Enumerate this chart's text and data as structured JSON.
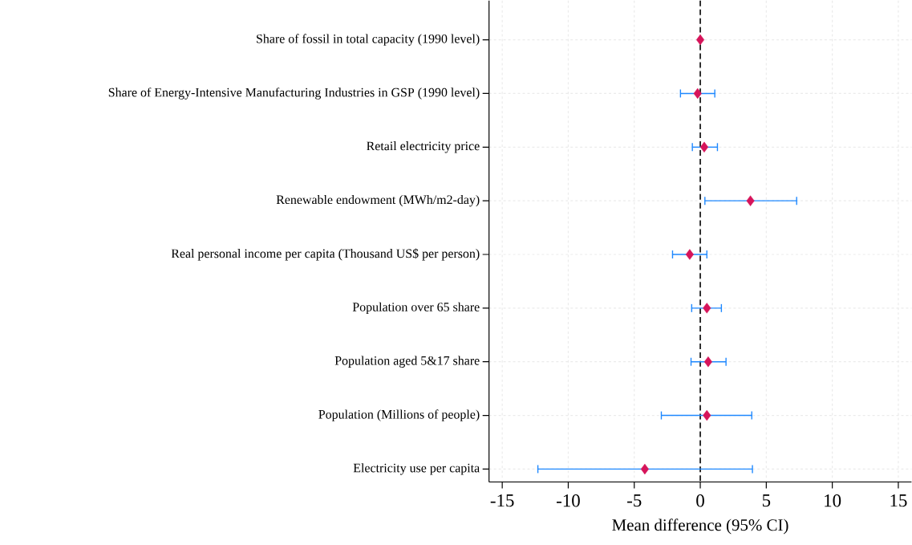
{
  "chart_data": {
    "type": "scatter",
    "orientation": "horizontal",
    "xlabel": "Mean difference (95% CI)",
    "categories": [
      "Share of fossil in total capacity (1990 level)",
      "Share of Energy-Intensive Manufacturing Industries in GSP (1990 level)",
      "Retail electricity price",
      "Renewable endowment (MWh/m2-day)",
      "Real personal income per capita (Thousand US$ per person)",
      "Population over 65 share",
      "Population aged 5&17 share",
      "Population (Millions of people)",
      "Electricity use per capita"
    ],
    "values": [
      0.0,
      -0.2,
      0.3,
      3.8,
      -0.8,
      0.5,
      0.6,
      0.5,
      -4.2
    ],
    "errors": [
      null,
      [
        -1.5,
        1.1
      ],
      [
        -0.6,
        1.3
      ],
      [
        0.35,
        7.3
      ],
      [
        -2.1,
        0.5
      ],
      [
        -0.65,
        1.6
      ],
      [
        -0.7,
        1.95
      ],
      [
        -2.95,
        3.9
      ],
      [
        -12.3,
        3.95
      ]
    ],
    "color": "#d6145a",
    "marker": "diamond",
    "grid": true,
    "xlim": [
      -16,
      16
    ],
    "xticks": [
      -15,
      -10,
      -5,
      0,
      5,
      10,
      15
    ],
    "ref_lines": [
      {
        "axis": "x",
        "value": 0,
        "color": "#000000",
        "line_style": "dashed"
      }
    ]
  }
}
